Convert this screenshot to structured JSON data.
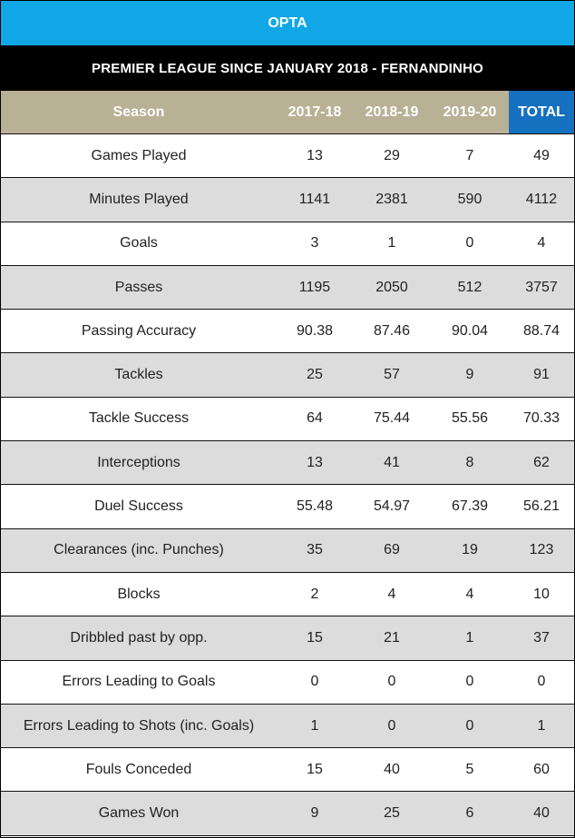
{
  "source": "OPTA",
  "title": "PREMIER LEAGUE SINCE JANUARY 2018 - FERNANDINHO",
  "columns": [
    "Season",
    "2017-18",
    "2018-19",
    "2019-20",
    "TOTAL"
  ],
  "rows": [
    {
      "label": "Games Played",
      "values": [
        "13",
        "29",
        "7",
        "49"
      ]
    },
    {
      "label": "Minutes Played",
      "values": [
        "1141",
        "2381",
        "590",
        "4112"
      ]
    },
    {
      "label": "Goals",
      "values": [
        "3",
        "1",
        "0",
        "4"
      ]
    },
    {
      "label": "Passes",
      "values": [
        "1195",
        "2050",
        "512",
        "3757"
      ]
    },
    {
      "label": "Passing Accuracy",
      "values": [
        "90.38",
        "87.46",
        "90.04",
        "88.74"
      ]
    },
    {
      "label": "Tackles",
      "values": [
        "25",
        "57",
        "9",
        "91"
      ]
    },
    {
      "label": "Tackle Success",
      "values": [
        "64",
        "75.44",
        "55.56",
        "70.33"
      ]
    },
    {
      "label": "Interceptions",
      "values": [
        "13",
        "41",
        "8",
        "62"
      ]
    },
    {
      "label": "Duel Success",
      "values": [
        "55.48",
        "54.97",
        "67.39",
        "56.21"
      ]
    },
    {
      "label": "Clearances (inc. Punches)",
      "values": [
        "35",
        "69",
        "19",
        "123"
      ]
    },
    {
      "label": "Blocks",
      "values": [
        "2",
        "4",
        "4",
        "10"
      ]
    },
    {
      "label": "Dribbled past by opp.",
      "values": [
        "15",
        "21",
        "1",
        "37"
      ]
    },
    {
      "label": "Errors Leading to Goals",
      "values": [
        "0",
        "0",
        "0",
        "0"
      ]
    },
    {
      "label": "Errors Leading to Shots (inc. Goals)",
      "values": [
        "1",
        "0",
        "0",
        "1"
      ]
    },
    {
      "label": "Fouls Conceded",
      "values": [
        "15",
        "40",
        "5",
        "60"
      ]
    },
    {
      "label": "Games Won",
      "values": [
        "9",
        "25",
        "6",
        "40"
      ]
    }
  ],
  "colors": {
    "opta_band": "#11a7e6",
    "title_band": "#000000",
    "header_band": "#b9b195",
    "total_header": "#1570c0",
    "row_alt": "#dcdcdc"
  }
}
